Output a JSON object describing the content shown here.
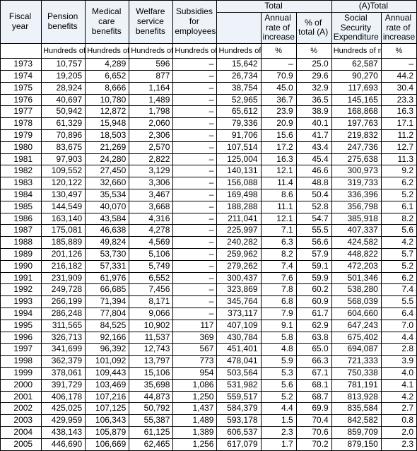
{
  "header": {
    "fiscal_year": "Fiscal year",
    "pension": "Pension benefits",
    "medical": "Medical care benefits",
    "welfare": "Welfare service benefits",
    "subsidies": "Subsidies for employees",
    "total_group": "Total",
    "total_sub_blank": "",
    "total_rate": "Annual rate of increase",
    "total_pct": "% of total (A)",
    "atotal_group": "(A)Total",
    "atotal_sse": "Social Security Expenditure",
    "atotal_rate": "Annual rate of increase"
  },
  "units": {
    "hmy": "Hundreds of millions of yen",
    "pct": "%"
  },
  "colors": {
    "header_bg": "#eef3f9",
    "border": "#000000",
    "background": "#ffffff"
  },
  "groups": [
    [
      {
        "fy": "1973",
        "pension": "10,757",
        "medical": "4,289",
        "welfare": "596",
        "subs": "–",
        "total": "15,642",
        "trate": "–",
        "pcta": "25.0",
        "sse": "62,587",
        "arate": "–"
      },
      {
        "fy": "1974",
        "pension": "19,205",
        "medical": "6,652",
        "welfare": "877",
        "subs": "–",
        "total": "26,734",
        "trate": "70.9",
        "pcta": "29.6",
        "sse": "90,270",
        "arate": "44.2"
      },
      {
        "fy": "1975",
        "pension": "28,924",
        "medical": "8,666",
        "welfare": "1,164",
        "subs": "–",
        "total": "38,754",
        "trate": "45.0",
        "pcta": "32.9",
        "sse": "117,693",
        "arate": "30.4"
      }
    ],
    [
      {
        "fy": "1976",
        "pension": "40,697",
        "medical": "10,780",
        "welfare": "1,489",
        "subs": "–",
        "total": "52,965",
        "trate": "36.7",
        "pcta": "36.5",
        "sse": "145,165",
        "arate": "23.3"
      },
      {
        "fy": "1977",
        "pension": "50,942",
        "medical": "12,872",
        "welfare": "1,798",
        "subs": "–",
        "total": "65,612",
        "trate": "23.9",
        "pcta": "38.9",
        "sse": "168,868",
        "arate": "16.3"
      },
      {
        "fy": "1978",
        "pension": "61,329",
        "medical": "15,948",
        "welfare": "2,060",
        "subs": "–",
        "total": "79,336",
        "trate": "20.9",
        "pcta": "40.1",
        "sse": "197,763",
        "arate": "17.1"
      },
      {
        "fy": "1979",
        "pension": "70,896",
        "medical": "18,503",
        "welfare": "2,306",
        "subs": "–",
        "total": "91,706",
        "trate": "15.6",
        "pcta": "41.7",
        "sse": "219,832",
        "arate": "11.2"
      },
      {
        "fy": "1980",
        "pension": "83,675",
        "medical": "21,269",
        "welfare": "2,570",
        "subs": "–",
        "total": "107,514",
        "trate": "17.2",
        "pcta": "43.4",
        "sse": "247,736",
        "arate": "12.7"
      }
    ],
    [
      {
        "fy": "1981",
        "pension": "97,903",
        "medical": "24,280",
        "welfare": "2,822",
        "subs": "–",
        "total": "125,004",
        "trate": "16.3",
        "pcta": "45.4",
        "sse": "275,638",
        "arate": "11.3"
      },
      {
        "fy": "1982",
        "pension": "109,552",
        "medical": "27,450",
        "welfare": "3,129",
        "subs": "–",
        "total": "140,131",
        "trate": "12.1",
        "pcta": "46.6",
        "sse": "300,973",
        "arate": "9.2"
      },
      {
        "fy": "1983",
        "pension": "120,122",
        "medical": "32,660",
        "welfare": "3,306",
        "subs": "–",
        "total": "156,088",
        "trate": "11.4",
        "pcta": "48.8",
        "sse": "319,733",
        "arate": "6.2"
      },
      {
        "fy": "1984",
        "pension": "130,497",
        "medical": "35,534",
        "welfare": "3,467",
        "subs": "–",
        "total": "169,498",
        "trate": "8.6",
        "pcta": "50.4",
        "sse": "336,396",
        "arate": "5.2"
      },
      {
        "fy": "1985",
        "pension": "144,549",
        "medical": "40,070",
        "welfare": "3,668",
        "subs": "–",
        "total": "188,288",
        "trate": "11.1",
        "pcta": "52.8",
        "sse": "356,798",
        "arate": "6.1"
      }
    ],
    [
      {
        "fy": "1986",
        "pension": "163,140",
        "medical": "43,584",
        "welfare": "4,316",
        "subs": "–",
        "total": "211,041",
        "trate": "12.1",
        "pcta": "54.7",
        "sse": "385,918",
        "arate": "8.2"
      },
      {
        "fy": "1987",
        "pension": "175,081",
        "medical": "46,638",
        "welfare": "4,278",
        "subs": "–",
        "total": "225,997",
        "trate": "7.1",
        "pcta": "55.5",
        "sse": "407,337",
        "arate": "5.6"
      },
      {
        "fy": "1988",
        "pension": "185,889",
        "medical": "49,824",
        "welfare": "4,569",
        "subs": "–",
        "total": "240,282",
        "trate": "6.3",
        "pcta": "56.6",
        "sse": "424,582",
        "arate": "4.2"
      },
      {
        "fy": "1989",
        "pension": "201,126",
        "medical": "53,730",
        "welfare": "5,106",
        "subs": "–",
        "total": "259,962",
        "trate": "8.2",
        "pcta": "57.9",
        "sse": "448,822",
        "arate": "5.7"
      },
      {
        "fy": "1990",
        "pension": "216,182",
        "medical": "57,331",
        "welfare": "5,749",
        "subs": "–",
        "total": "279,262",
        "trate": "7.4",
        "pcta": "59.1",
        "sse": "472,203",
        "arate": "5.2"
      }
    ],
    [
      {
        "fy": "1991",
        "pension": "231,909",
        "medical": "61,976",
        "welfare": "6,552",
        "subs": "–",
        "total": "300,437",
        "trate": "7.6",
        "pcta": "59.9",
        "sse": "501,346",
        "arate": "6.2"
      },
      {
        "fy": "1992",
        "pension": "249,728",
        "medical": "66,685",
        "welfare": "7,456",
        "subs": "–",
        "total": "323,869",
        "trate": "7.8",
        "pcta": "60.2",
        "sse": "538,280",
        "arate": "7.4"
      },
      {
        "fy": "1993",
        "pension": "266,199",
        "medical": "71,394",
        "welfare": "8,171",
        "subs": "–",
        "total": "345,764",
        "trate": "6.8",
        "pcta": "60.9",
        "sse": "568,039",
        "arate": "5.5"
      },
      {
        "fy": "1994",
        "pension": "286,248",
        "medical": "77,804",
        "welfare": "9,066",
        "subs": "–",
        "total": "373,117",
        "trate": "7.9",
        "pcta": "61.7",
        "sse": "604,660",
        "arate": "6.4"
      },
      {
        "fy": "1995",
        "pension": "311,565",
        "medical": "84,525",
        "welfare": "10,902",
        "subs": "117",
        "total": "407,109",
        "trate": "9.1",
        "pcta": "62.9",
        "sse": "647,243",
        "arate": "7.0"
      }
    ],
    [
      {
        "fy": "1996",
        "pension": "326,713",
        "medical": "92,166",
        "welfare": "11,537",
        "subs": "369",
        "total": "430,784",
        "trate": "5.8",
        "pcta": "63.8",
        "sse": "675,402",
        "arate": "4.4"
      },
      {
        "fy": "1997",
        "pension": "341,699",
        "medical": "96,392",
        "welfare": "12,743",
        "subs": "567",
        "total": "451,401",
        "trate": "4.8",
        "pcta": "65.0",
        "sse": "694,087",
        "arate": "2.8"
      },
      {
        "fy": "1998",
        "pension": "362,379",
        "medical": "101,092",
        "welfare": "13,797",
        "subs": "773",
        "total": "478,041",
        "trate": "5.9",
        "pcta": "66.3",
        "sse": "721,333",
        "arate": "3.9"
      },
      {
        "fy": "1999",
        "pension": "378,061",
        "medical": "109,443",
        "welfare": "15,106",
        "subs": "954",
        "total": "503,564",
        "trate": "5.3",
        "pcta": "67.1",
        "sse": "750,338",
        "arate": "4.0"
      },
      {
        "fy": "2000",
        "pension": "391,729",
        "medical": "103,469",
        "welfare": "35,698",
        "subs": "1,086",
        "total": "531,982",
        "trate": "5.6",
        "pcta": "68.1",
        "sse": "781,191",
        "arate": "4.1"
      }
    ],
    [
      {
        "fy": "2001",
        "pension": "406,178",
        "medical": "107,216",
        "welfare": "44,873",
        "subs": "1,250",
        "total": "559,517",
        "trate": "5.2",
        "pcta": "68.7",
        "sse": "813,928",
        "arate": "4.2"
      },
      {
        "fy": "2002",
        "pension": "425,025",
        "medical": "107,125",
        "welfare": "50,792",
        "subs": "1,437",
        "total": "584,379",
        "trate": "4.4",
        "pcta": "69.9",
        "sse": "835,584",
        "arate": "2.7"
      },
      {
        "fy": "2003",
        "pension": "429,959",
        "medical": "106,343",
        "welfare": "55,387",
        "subs": "1,489",
        "total": "593,178",
        "trate": "1.5",
        "pcta": "70.4",
        "sse": "842,582",
        "arate": "0.8"
      },
      {
        "fy": "2004",
        "pension": "438,143",
        "medical": "105,879",
        "welfare": "61,125",
        "subs": "1,389",
        "total": "606,537",
        "trate": "2.3",
        "pcta": "70.6",
        "sse": "859,709",
        "arate": "2.0"
      },
      {
        "fy": "2005",
        "pension": "446,690",
        "medical": "106,669",
        "welfare": "62,465",
        "subs": "1,256",
        "total": "617,079",
        "trate": "1.7",
        "pcta": "70.2",
        "sse": "879,150",
        "arate": "2.3"
      }
    ]
  ]
}
